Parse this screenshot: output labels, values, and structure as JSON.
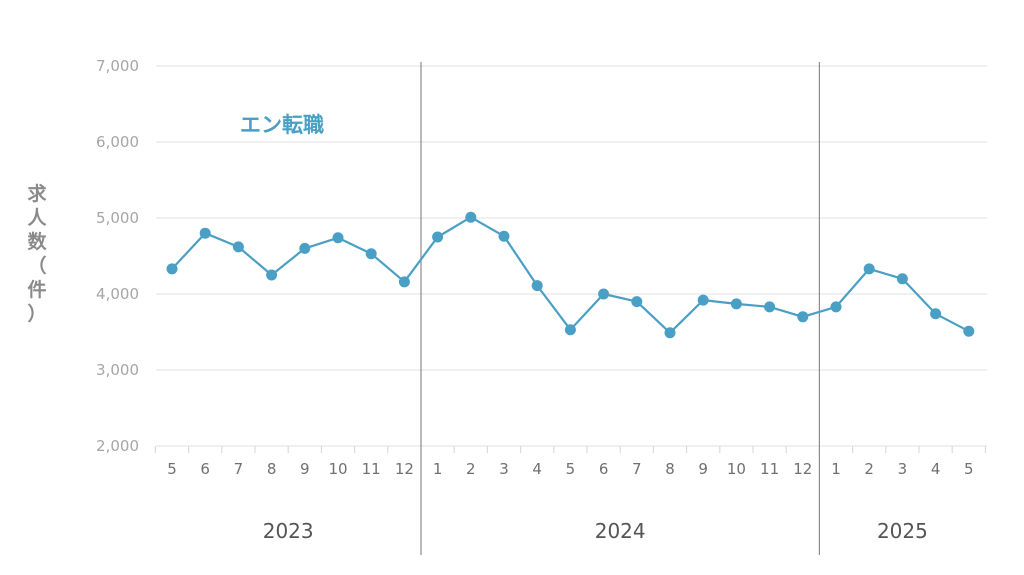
{
  "chart_data": {
    "type": "line",
    "title": "",
    "ylabel": "求人数（件）",
    "ylim": [
      2000,
      7000
    ],
    "yticks": [
      2000,
      3000,
      4000,
      5000,
      6000,
      7000
    ],
    "ytick_labels": [
      "2,000",
      "3,000",
      "4,000",
      "5,000",
      "6,000",
      "7,000"
    ],
    "grid": true,
    "colors": {
      "series": "#4a9fc4",
      "grid": "#e2e2e2",
      "separator": "#8c8c8c"
    },
    "x_month_labels": [
      "5",
      "6",
      "7",
      "8",
      "9",
      "10",
      "11",
      "12",
      "1",
      "2",
      "3",
      "4",
      "5",
      "6",
      "7",
      "8",
      "9",
      "10",
      "11",
      "12",
      "1",
      "2",
      "3",
      "4",
      "5"
    ],
    "year_groups": [
      {
        "label": "2023",
        "start": 0,
        "end": 7
      },
      {
        "label": "2024",
        "start": 8,
        "end": 19
      },
      {
        "label": "2025",
        "start": 20,
        "end": 24
      }
    ],
    "series": [
      {
        "name": "エン転職",
        "values": [
          4330,
          4800,
          4620,
          4250,
          4600,
          4740,
          4530,
          4160,
          4750,
          5010,
          4760,
          4110,
          3530,
          4000,
          3900,
          3490,
          3920,
          3870,
          3830,
          3700,
          3830,
          4330,
          4200,
          3740,
          3510
        ]
      }
    ]
  }
}
